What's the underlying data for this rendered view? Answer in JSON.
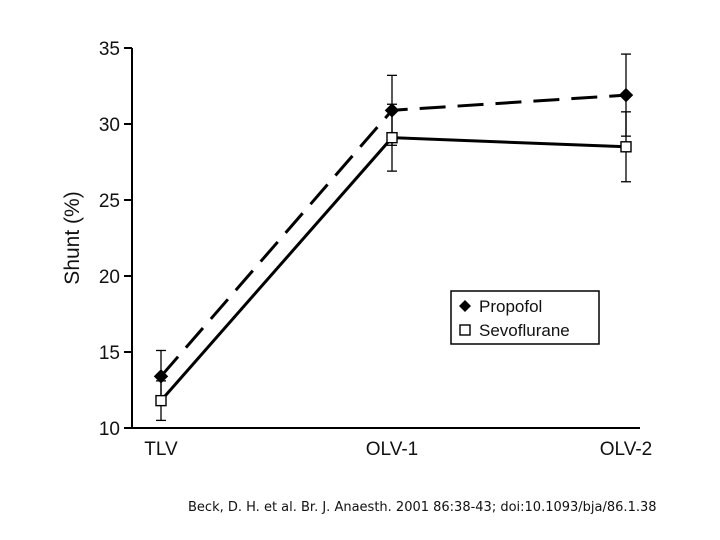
{
  "chart_data": {
    "type": "line",
    "categories": [
      "TLV",
      "OLV-1",
      "OLV-2"
    ],
    "ylabel": "Shunt (%)",
    "xlabel": "",
    "ylim": [
      10,
      35
    ],
    "yticks": [
      10,
      15,
      20,
      25,
      30,
      35
    ],
    "grid": false,
    "legend_position": "lower-right",
    "series": [
      {
        "name": "Propofol",
        "values": [
          13.4,
          30.9,
          31.9
        ],
        "err_low": [
          1.7,
          2.3,
          2.7
        ],
        "err_high": [
          1.7,
          2.3,
          2.7
        ],
        "marker": "filled-diamond",
        "line": "dashed",
        "color": "#000000"
      },
      {
        "name": "Sevoflurane",
        "values": [
          11.8,
          29.1,
          28.5
        ],
        "err_low": [
          1.3,
          2.2,
          2.3
        ],
        "err_high": [
          1.3,
          2.2,
          2.3
        ],
        "marker": "open-square",
        "line": "solid",
        "color": "#000000"
      }
    ]
  },
  "citation": "Beck, D. H. et al. Br. J. Anaesth. 2001 86:38-43; doi:10.1093/bja/86.1.38"
}
